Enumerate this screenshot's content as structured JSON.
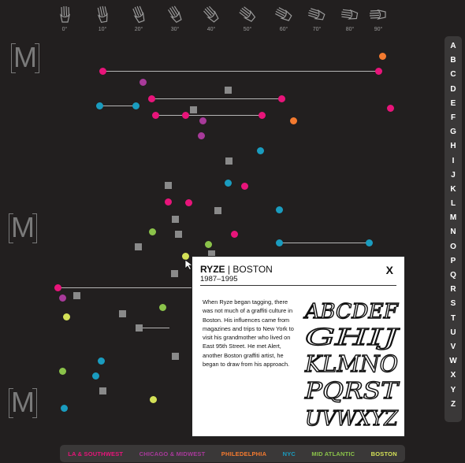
{
  "angles": [
    "0°",
    "10°",
    "20°",
    "30°",
    "40°",
    "50°",
    "60°",
    "70°",
    "80°",
    "90°"
  ],
  "section_markers": [
    "M",
    "M",
    "M"
  ],
  "alphabet": [
    "A",
    "B",
    "C",
    "D",
    "E",
    "F",
    "G",
    "H",
    "I",
    "J",
    "K",
    "L",
    "M",
    "N",
    "O",
    "P",
    "Q",
    "R",
    "S",
    "T",
    "U",
    "V",
    "W",
    "X",
    "Y",
    "Z"
  ],
  "legend": [
    {
      "label": "LA & SOUTHWEST",
      "color": "#e8147a"
    },
    {
      "label": "CHICAGO & MIDWEST",
      "color": "#a83a9a"
    },
    {
      "label": "PHILEDELPHIA",
      "color": "#f47a2f"
    },
    {
      "label": "NYC",
      "color": "#1a9cbf"
    },
    {
      "label": "MID ATLANTIC",
      "color": "#8bc34a"
    },
    {
      "label": "BOSTON",
      "color": "#d4e157"
    }
  ],
  "colors": {
    "la": "#e8147a",
    "chi": "#a83a9a",
    "phi": "#f47a2f",
    "nyc": "#1a9cbf",
    "mid": "#8bc34a",
    "bos": "#d4e157",
    "none": "#8a8a8a"
  },
  "popup": {
    "name": "RYZE",
    "separator": " | ",
    "region": "BOSTON",
    "years": "1987–1995",
    "close": "X",
    "body": "When Ryze began tagging, there was not much of a graffiti culture in Boston. His influences came from magazines and trips to New York to visit his grandmother who lived on East 95th Street. He met Alert, another Boston graffiti artist, he began to draw from his approach.",
    "alphabet_rows": [
      "ABCDEF",
      "GHIJ",
      "KLMNO",
      "PQRST",
      "UVWXYZ"
    ],
    "alphabet_icon": "graffiti-alphabet-sample"
  }
}
